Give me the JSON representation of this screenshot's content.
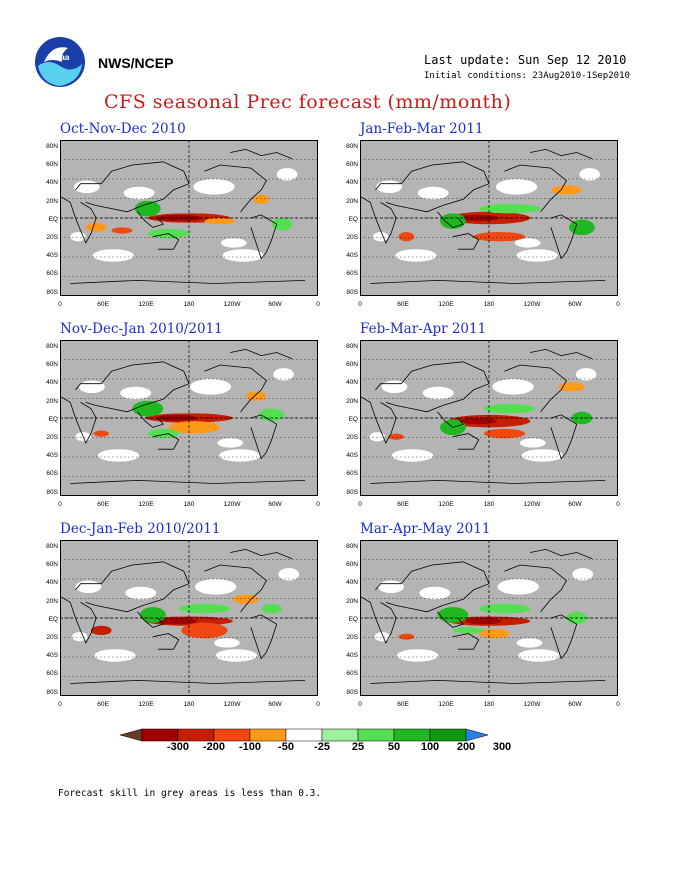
{
  "header": {
    "org": "NWS/NCEP",
    "last_update": "Last update: Sun Sep 12 2010",
    "initial_conditions": "Initial conditions: 23Aug2010-1Sep2010",
    "title": "CFS seasonal Prec forecast (mm/month)"
  },
  "panels": [
    {
      "title": "Oct-Nov-Dec 2010"
    },
    {
      "title": "Jan-Feb-Mar 2011"
    },
    {
      "title": "Nov-Dec-Jan 2010/2011"
    },
    {
      "title": "Feb-Mar-Apr 2011"
    },
    {
      "title": "Dec-Jan-Feb 2010/2011"
    },
    {
      "title": "Mar-Apr-May 2011"
    }
  ],
  "map_axes": {
    "lat_labels": [
      "80N",
      "60N",
      "40N",
      "20N",
      "EQ",
      "20S",
      "40S",
      "60S",
      "80S"
    ],
    "lon_labels": [
      "0",
      "60E",
      "120E",
      "180",
      "120W",
      "60W",
      "0"
    ]
  },
  "colorbar": {
    "labels": [
      "-300",
      "-200",
      "-100",
      "-50",
      "-25",
      "25",
      "50",
      "100",
      "200",
      "300"
    ],
    "colors": [
      "#6e3a28",
      "#a00000",
      "#c81e00",
      "#f04810",
      "#ff9a18",
      "#ffffff",
      "#9cf29c",
      "#52e052",
      "#20b820",
      "#109810",
      "#2a7fe8"
    ]
  },
  "footer": {
    "note": "Forecast skill in grey areas is less than 0.3."
  }
}
